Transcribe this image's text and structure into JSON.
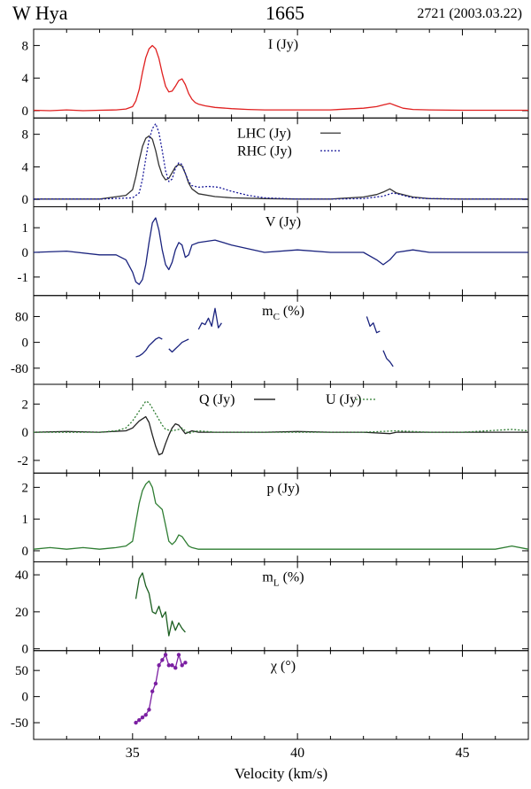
{
  "header": {
    "source": "W Hya",
    "line": "1665",
    "observation": "2721 (2003.03.22)"
  },
  "chart_data": [
    {
      "type": "line",
      "label": "I (Jy)",
      "ylim": [
        -0.9,
        10.0
      ],
      "yticks": [
        0,
        4,
        8
      ],
      "series": [
        {
          "name": "",
          "color": "#e02020",
          "dash": "",
          "x": [
            32.0,
            32.5,
            33.0,
            33.5,
            34.0,
            34.5,
            34.8,
            35.0,
            35.1,
            35.2,
            35.3,
            35.4,
            35.5,
            35.6,
            35.7,
            35.8,
            35.9,
            36.0,
            36.1,
            36.2,
            36.3,
            36.4,
            36.5,
            36.6,
            36.7,
            36.8,
            36.9,
            37.0,
            37.2,
            37.5,
            38.0,
            38.5,
            39.0,
            40.0,
            41.0,
            42.0,
            42.4,
            42.6,
            42.8,
            43.0,
            43.2,
            43.5,
            44.0,
            45.0,
            46.0,
            47.0
          ],
          "y": [
            0.05,
            0.0,
            0.1,
            0.0,
            0.05,
            0.1,
            0.2,
            0.5,
            1.2,
            2.6,
            4.7,
            6.5,
            7.6,
            8.0,
            7.6,
            6.4,
            4.6,
            3.0,
            2.3,
            2.4,
            3.0,
            3.7,
            3.9,
            3.2,
            2.1,
            1.4,
            1.0,
            0.8,
            0.6,
            0.4,
            0.25,
            0.15,
            0.1,
            0.1,
            0.1,
            0.3,
            0.5,
            0.7,
            0.9,
            0.6,
            0.3,
            0.15,
            0.1,
            0.05,
            0.05,
            0.05
          ]
        }
      ]
    },
    {
      "type": "line",
      "label": "",
      "ylim": [
        -0.9,
        10.0
      ],
      "yticks": [
        0,
        4,
        8
      ],
      "legend": [
        {
          "name": "LHC (Jy)",
          "color": "#333333",
          "dash": ""
        },
        {
          "name": "RHC (Jy)",
          "color": "#1a1a9a",
          "dash": "2,2"
        }
      ],
      "series": [
        {
          "name": "LHC (Jy)",
          "color": "#333333",
          "dash": "",
          "x": [
            32.0,
            33.0,
            34.0,
            34.8,
            35.0,
            35.1,
            35.2,
            35.3,
            35.4,
            35.5,
            35.6,
            35.7,
            35.8,
            35.9,
            36.0,
            36.1,
            36.2,
            36.3,
            36.4,
            36.5,
            36.6,
            36.7,
            36.8,
            37.0,
            37.5,
            38.0,
            39.0,
            40.0,
            41.0,
            42.0,
            42.4,
            42.6,
            42.8,
            43.0,
            43.5,
            44.0,
            45.0,
            47.0
          ],
          "y": [
            0.05,
            0.05,
            0.05,
            0.5,
            1.2,
            2.8,
            4.8,
            6.5,
            7.5,
            7.8,
            7.4,
            6.0,
            4.2,
            3.0,
            2.4,
            2.6,
            3.3,
            4.0,
            4.3,
            4.1,
            3.2,
            2.0,
            1.3,
            0.7,
            0.35,
            0.2,
            0.1,
            0.05,
            0.05,
            0.3,
            0.6,
            0.9,
            1.3,
            0.8,
            0.3,
            0.1,
            0.05,
            0.05
          ]
        },
        {
          "name": "RHC (Jy)",
          "color": "#1a1a9a",
          "dash": "2,2",
          "x": [
            32.0,
            33.0,
            34.0,
            35.0,
            35.2,
            35.3,
            35.4,
            35.5,
            35.6,
            35.7,
            35.8,
            35.9,
            36.0,
            36.1,
            36.2,
            36.3,
            36.4,
            36.5,
            36.6,
            36.7,
            36.8,
            37.0,
            37.3,
            37.6,
            38.0,
            38.5,
            39.0,
            40.0,
            41.0,
            42.0,
            42.6,
            42.9,
            43.2,
            43.5,
            44.0,
            45.0,
            47.0
          ],
          "y": [
            0.05,
            0.05,
            0.05,
            0.2,
            0.8,
            2.5,
            5.0,
            7.3,
            8.7,
            9.3,
            8.2,
            6.0,
            3.5,
            2.2,
            2.5,
            3.8,
            4.5,
            4.3,
            3.2,
            2.2,
            1.7,
            1.5,
            1.6,
            1.5,
            1.0,
            0.5,
            0.2,
            0.05,
            0.05,
            0.1,
            0.4,
            0.8,
            0.5,
            0.2,
            0.1,
            0.05,
            0.05
          ]
        }
      ]
    },
    {
      "type": "line",
      "label": "V (Jy)",
      "ylim": [
        -1.75,
        1.85
      ],
      "yticks": [
        -1,
        0,
        1
      ],
      "series": [
        {
          "name": "",
          "color": "#1a237e",
          "dash": "",
          "x": [
            32.0,
            33.0,
            34.0,
            34.5,
            34.8,
            35.0,
            35.1,
            35.2,
            35.3,
            35.4,
            35.5,
            35.6,
            35.7,
            35.8,
            35.9,
            36.0,
            36.1,
            36.2,
            36.3,
            36.4,
            36.5,
            36.6,
            36.7,
            36.8,
            37.0,
            37.5,
            38.0,
            39.0,
            40.0,
            41.0,
            42.0,
            42.4,
            42.6,
            42.8,
            43.0,
            43.5,
            44.0,
            45.0,
            47.0
          ],
          "y": [
            0.0,
            0.05,
            -0.1,
            -0.1,
            -0.3,
            -0.8,
            -1.2,
            -1.3,
            -1.1,
            -0.5,
            0.4,
            1.2,
            1.4,
            0.9,
            0.1,
            -0.5,
            -0.7,
            -0.4,
            0.1,
            0.4,
            0.3,
            -0.2,
            -0.1,
            0.3,
            0.4,
            0.5,
            0.3,
            0.0,
            0.1,
            0.0,
            0.0,
            -0.3,
            -0.5,
            -0.3,
            0.0,
            0.1,
            0.0,
            0.0,
            0.0
          ]
        }
      ]
    },
    {
      "type": "line",
      "label": "m",
      "label_sub": "C",
      "label_unit": " (%)",
      "ylim": [
        -130,
        145
      ],
      "yticks": [
        -80,
        0,
        80
      ],
      "series": [
        {
          "name": "",
          "color": "#1a237e",
          "dash": "",
          "x": [
            35.1,
            35.2,
            35.3,
            35.4,
            35.5,
            35.6,
            35.7,
            35.8,
            35.9
          ],
          "y": [
            -45,
            -42,
            -35,
            -25,
            -10,
            0,
            10,
            15,
            10
          ]
        },
        {
          "name": "",
          "color": "#1a237e",
          "dash": "",
          "x": [
            36.1,
            36.2,
            36.3,
            36.4,
            36.5,
            36.6,
            36.7
          ],
          "y": [
            -20,
            -30,
            -20,
            -10,
            0,
            5,
            10
          ]
        },
        {
          "name": "",
          "color": "#1a237e",
          "dash": "",
          "x": [
            37.0,
            37.1,
            37.2,
            37.3,
            37.4,
            37.5,
            37.6,
            37.7
          ],
          "y": [
            40,
            60,
            55,
            75,
            50,
            105,
            45,
            60
          ]
        },
        {
          "name": "",
          "color": "#1a237e",
          "dash": "",
          "x": [
            42.1,
            42.2,
            42.3,
            42.4,
            42.5
          ],
          "y": [
            80,
            50,
            60,
            30,
            35
          ]
        },
        {
          "name": "",
          "color": "#1a237e",
          "dash": "",
          "x": [
            42.6,
            42.7,
            42.8,
            42.9
          ],
          "y": [
            -25,
            -50,
            -60,
            -75
          ]
        }
      ]
    },
    {
      "type": "line",
      "label": "",
      "ylim": [
        -2.9,
        3.4
      ],
      "yticks": [
        -2,
        0,
        2
      ],
      "legend": [
        {
          "name": "Q (Jy)",
          "color": "#000000",
          "dash": ""
        },
        {
          "name": "U (Jy)",
          "color": "#2e7d32",
          "dash": "2,2"
        }
      ],
      "series": [
        {
          "name": "Q (Jy)",
          "color": "#222222",
          "dash": "",
          "x": [
            32.0,
            33.0,
            34.0,
            34.8,
            35.0,
            35.2,
            35.4,
            35.5,
            35.6,
            35.7,
            35.8,
            35.9,
            36.0,
            36.1,
            36.2,
            36.3,
            36.4,
            36.5,
            36.6,
            36.7,
            36.8,
            37.0,
            37.5,
            38.0,
            39.0,
            40.0,
            41.0,
            42.0,
            42.8,
            43.0,
            44.0,
            45.0,
            47.0
          ],
          "y": [
            0.0,
            0.05,
            0.0,
            0.1,
            0.3,
            0.8,
            1.1,
            0.7,
            -0.2,
            -1.0,
            -1.6,
            -1.5,
            -0.8,
            -0.2,
            0.3,
            0.6,
            0.5,
            0.2,
            -0.1,
            0.0,
            0.1,
            0.0,
            0.0,
            0.0,
            0.0,
            0.05,
            0.0,
            0.0,
            -0.1,
            0.0,
            0.0,
            0.0,
            0.0
          ]
        },
        {
          "name": "U (Jy)",
          "color": "#2e7d32",
          "dash": "2,2",
          "x": [
            32.0,
            33.0,
            34.0,
            34.5,
            34.8,
            35.0,
            35.2,
            35.4,
            35.5,
            35.6,
            35.7,
            35.8,
            35.9,
            36.0,
            36.2,
            36.4,
            36.5,
            36.6,
            36.7,
            36.8,
            37.0,
            37.5,
            38.0,
            39.0,
            40.0,
            41.0,
            42.0,
            43.0,
            44.0,
            45.0,
            46.5,
            47.0
          ],
          "y": [
            0.0,
            0.0,
            0.0,
            0.1,
            0.3,
            0.8,
            1.5,
            2.2,
            2.1,
            1.7,
            1.3,
            0.9,
            0.5,
            0.2,
            0.1,
            0.2,
            0.3,
            0.1,
            -0.1,
            0.0,
            0.1,
            0.0,
            0.0,
            0.0,
            0.0,
            0.0,
            0.0,
            0.1,
            0.0,
            0.0,
            0.2,
            0.1
          ]
        }
      ]
    },
    {
      "type": "line",
      "label": "p (Jy)",
      "ylim": [
        -0.35,
        2.45
      ],
      "yticks": [
        0,
        1,
        2
      ],
      "series": [
        {
          "name": "",
          "color": "#2e7d32",
          "dash": "",
          "x": [
            32.0,
            32.5,
            33.0,
            33.5,
            34.0,
            34.5,
            34.8,
            35.0,
            35.1,
            35.2,
            35.3,
            35.4,
            35.5,
            35.6,
            35.7,
            35.8,
            35.9,
            36.0,
            36.1,
            36.2,
            36.3,
            36.4,
            36.5,
            36.6,
            36.7,
            36.8,
            37.0,
            37.5,
            38.0,
            39.0,
            40.0,
            41.0,
            42.0,
            43.0,
            44.0,
            45.0,
            46.0,
            46.5,
            47.0
          ],
          "y": [
            0.05,
            0.1,
            0.05,
            0.1,
            0.05,
            0.1,
            0.15,
            0.3,
            0.9,
            1.5,
            1.9,
            2.1,
            2.2,
            2.0,
            1.5,
            1.4,
            1.3,
            0.8,
            0.3,
            0.2,
            0.3,
            0.5,
            0.45,
            0.3,
            0.15,
            0.1,
            0.05,
            0.05,
            0.05,
            0.05,
            0.05,
            0.05,
            0.05,
            0.05,
            0.05,
            0.05,
            0.05,
            0.15,
            0.05
          ]
        }
      ]
    },
    {
      "type": "line",
      "label": "m",
      "label_sub": "L",
      "label_unit": " (%)",
      "ylim": [
        -1,
        47
      ],
      "yticks": [
        0,
        20,
        40
      ],
      "series": [
        {
          "name": "",
          "color": "#1b5e20",
          "dash": "",
          "x": [
            35.1,
            35.2,
            35.3,
            35.4,
            35.5,
            35.6,
            35.7,
            35.8,
            35.9,
            36.0,
            36.1,
            36.2,
            36.3,
            36.4,
            36.5,
            36.6
          ],
          "y": [
            27,
            38,
            41,
            34,
            30,
            20,
            19,
            23,
            17,
            20,
            7,
            15,
            10,
            14,
            11,
            9
          ]
        }
      ]
    },
    {
      "type": "line",
      "label": "χ (°)",
      "ylim": [
        -82,
        88
      ],
      "yticks": [
        -50,
        0,
        50
      ],
      "markers": true,
      "series": [
        {
          "name": "",
          "color": "#7b1fa2",
          "dash": "",
          "x": [
            35.1,
            35.2,
            35.3,
            35.4,
            35.5,
            35.6,
            35.7,
            35.8,
            35.9,
            36.0,
            36.1,
            36.2,
            36.3,
            36.4,
            36.5,
            36.6
          ],
          "y": [
            -50,
            -45,
            -40,
            -35,
            -25,
            10,
            25,
            60,
            70,
            80,
            60,
            60,
            55,
            80,
            60,
            65
          ]
        }
      ]
    }
  ],
  "xaxis": {
    "label": "Velocity (km/s)",
    "xlim": [
      32.0,
      47.0
    ],
    "ticks": [
      35,
      40,
      45
    ]
  }
}
